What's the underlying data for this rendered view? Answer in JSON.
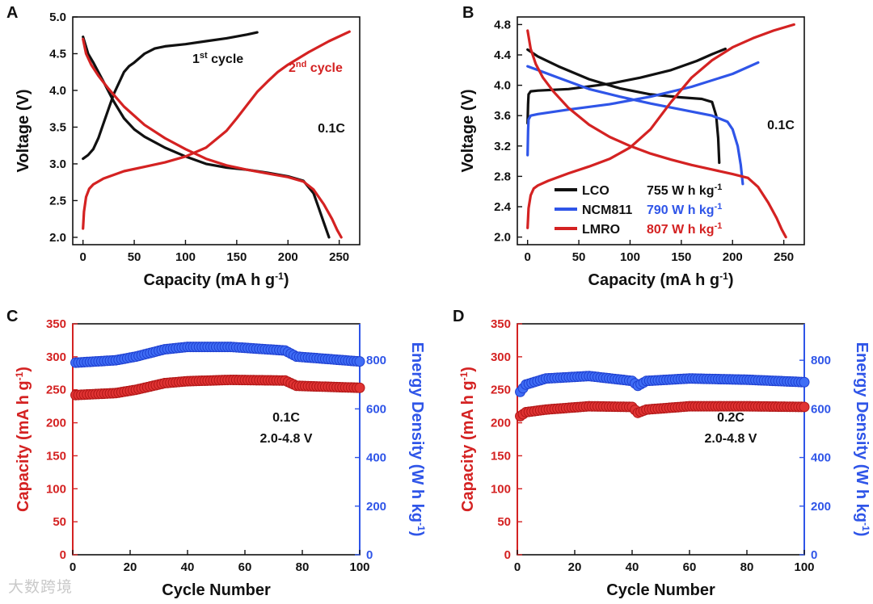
{
  "watermark": "大数跨境",
  "chart_data": [
    {
      "panel": "A",
      "type": "line",
      "xlabel": "Capacity (mA h g⁻¹)",
      "ylabel": "Voltage (V)",
      "xlim": [
        -10,
        270
      ],
      "ylim": [
        1.9,
        5.0
      ],
      "xticks": [
        0,
        50,
        100,
        150,
        200,
        250
      ],
      "yticks": [
        2.0,
        2.5,
        3.0,
        3.5,
        4.0,
        4.5,
        5.0
      ],
      "annotations": [
        {
          "text": "1st cycle",
          "color": "#111111"
        },
        {
          "text": "2nd cycle",
          "color": "#d42222"
        },
        {
          "text": "0.1C",
          "color": "#111111"
        }
      ],
      "series": [
        {
          "name": "1st cycle charge",
          "color": "#111111",
          "x": [
            0,
            5,
            10,
            15,
            20,
            30,
            40,
            45,
            50,
            60,
            70,
            80,
            100,
            120,
            140,
            160,
            170
          ],
          "y": [
            3.07,
            3.12,
            3.2,
            3.35,
            3.55,
            3.95,
            4.25,
            4.33,
            4.38,
            4.5,
            4.57,
            4.6,
            4.63,
            4.67,
            4.71,
            4.76,
            4.79
          ]
        },
        {
          "name": "1st cycle discharge",
          "color": "#111111",
          "x": [
            0,
            5,
            10,
            20,
            30,
            40,
            50,
            60,
            80,
            100,
            120,
            140,
            160,
            180,
            200,
            215,
            225,
            230,
            235,
            240
          ],
          "y": [
            4.73,
            4.5,
            4.38,
            4.12,
            3.85,
            3.62,
            3.47,
            3.37,
            3.22,
            3.1,
            3.0,
            2.95,
            2.92,
            2.88,
            2.83,
            2.77,
            2.6,
            2.4,
            2.2,
            2.0
          ]
        },
        {
          "name": "2nd cycle charge",
          "color": "#d42222",
          "x": [
            0,
            1,
            3,
            6,
            10,
            20,
            40,
            60,
            80,
            100,
            120,
            140,
            150,
            160,
            170,
            180,
            190,
            200,
            220,
            240,
            260
          ],
          "y": [
            2.12,
            2.35,
            2.55,
            2.66,
            2.72,
            2.8,
            2.9,
            2.96,
            3.02,
            3.1,
            3.22,
            3.45,
            3.62,
            3.8,
            3.98,
            4.12,
            4.25,
            4.35,
            4.52,
            4.67,
            4.8
          ]
        },
        {
          "name": "2nd cycle discharge",
          "color": "#d42222",
          "x": [
            0,
            3,
            8,
            15,
            25,
            40,
            60,
            80,
            100,
            120,
            140,
            160,
            180,
            200,
            215,
            225,
            235,
            243,
            248,
            252
          ],
          "y": [
            4.7,
            4.5,
            4.35,
            4.2,
            4.02,
            3.78,
            3.53,
            3.35,
            3.2,
            3.07,
            2.98,
            2.92,
            2.87,
            2.82,
            2.76,
            2.65,
            2.45,
            2.25,
            2.1,
            2.0
          ]
        }
      ]
    },
    {
      "panel": "B",
      "type": "line",
      "xlabel": "Capacity (mA h g⁻¹)",
      "ylabel": "Voltage (V)",
      "xlim": [
        -10,
        270
      ],
      "ylim": [
        1.9,
        4.9
      ],
      "xticks": [
        0,
        50,
        100,
        150,
        200,
        250
      ],
      "yticks": [
        2.0,
        2.4,
        2.8,
        3.2,
        3.6,
        4.0,
        4.4,
        4.8
      ],
      "annotations": [
        {
          "text": "0.1C",
          "color": "#111111"
        }
      ],
      "legend": [
        {
          "label": "LCO",
          "energy": "755 W h kg⁻¹",
          "color": "#111111"
        },
        {
          "label": "NCM811",
          "energy": "790 W h kg⁻¹",
          "color": "#2f55e8"
        },
        {
          "label": "LMRO",
          "energy": "807 W h kg⁻¹",
          "color": "#d42222"
        }
      ],
      "series": [
        {
          "name": "LCO charge",
          "color": "#111111",
          "x": [
            0,
            0.5,
            1,
            3,
            10,
            40,
            80,
            110,
            140,
            165,
            180,
            193
          ],
          "y": [
            3.5,
            3.75,
            3.88,
            3.92,
            3.93,
            3.95,
            4.02,
            4.1,
            4.2,
            4.32,
            4.41,
            4.48
          ]
        },
        {
          "name": "LCO discharge",
          "color": "#111111",
          "x": [
            0,
            10,
            30,
            60,
            90,
            120,
            150,
            170,
            180,
            184,
            186,
            187
          ],
          "y": [
            4.47,
            4.38,
            4.25,
            4.08,
            3.96,
            3.88,
            3.84,
            3.82,
            3.78,
            3.6,
            3.3,
            2.98
          ]
        },
        {
          "name": "NCM811 charge",
          "color": "#2f55e8",
          "x": [
            0,
            0.5,
            1,
            3,
            10,
            40,
            80,
            120,
            160,
            200,
            225
          ],
          "y": [
            3.08,
            3.4,
            3.55,
            3.6,
            3.62,
            3.68,
            3.75,
            3.85,
            3.98,
            4.15,
            4.3
          ]
        },
        {
          "name": "NCM811 discharge",
          "color": "#2f55e8",
          "x": [
            0,
            10,
            30,
            60,
            90,
            120,
            150,
            180,
            195,
            200,
            205,
            208,
            210
          ],
          "y": [
            4.25,
            4.2,
            4.1,
            3.95,
            3.85,
            3.76,
            3.68,
            3.6,
            3.52,
            3.42,
            3.2,
            2.95,
            2.7
          ]
        },
        {
          "name": "LMRO charge",
          "color": "#d42222",
          "x": [
            0,
            1,
            3,
            6,
            10,
            20,
            40,
            60,
            80,
            100,
            120,
            140,
            160,
            180,
            200,
            220,
            240,
            260
          ],
          "y": [
            2.12,
            2.38,
            2.55,
            2.64,
            2.68,
            2.74,
            2.84,
            2.93,
            3.03,
            3.18,
            3.42,
            3.78,
            4.1,
            4.33,
            4.5,
            4.62,
            4.72,
            4.8
          ]
        },
        {
          "name": "LMRO discharge",
          "color": "#d42222",
          "x": [
            0,
            3,
            8,
            15,
            25,
            40,
            60,
            80,
            100,
            120,
            140,
            160,
            180,
            200,
            215,
            225,
            235,
            243,
            248,
            252
          ],
          "y": [
            4.72,
            4.48,
            4.28,
            4.1,
            3.92,
            3.7,
            3.48,
            3.32,
            3.2,
            3.1,
            3.02,
            2.95,
            2.89,
            2.83,
            2.78,
            2.66,
            2.45,
            2.25,
            2.1,
            2.0
          ]
        }
      ]
    },
    {
      "panel": "C",
      "type": "scatter",
      "xlabel": "Cycle Number",
      "ylabel": "Capacity (mA h g⁻¹)",
      "y2label": "Energy Density (W h kg⁻¹)",
      "xlim": [
        0,
        100
      ],
      "ylim": [
        0,
        350
      ],
      "y2lim": [
        0,
        950
      ],
      "xticks": [
        0,
        20,
        40,
        60,
        80,
        100
      ],
      "yticks": [
        0,
        50,
        100,
        150,
        200,
        250,
        300,
        350
      ],
      "y2ticks": [
        0,
        200,
        400,
        600,
        800
      ],
      "annotations": [
        {
          "text": "0.1C"
        },
        {
          "text": "2.0-4.8 V"
        }
      ],
      "capacity_color": "#d42222",
      "energy_color": "#2f55e8",
      "capacity_profile": [
        [
          1,
          242
        ],
        [
          15,
          245
        ],
        [
          22,
          250
        ],
        [
          32,
          260
        ],
        [
          40,
          263
        ],
        [
          55,
          265
        ],
        [
          74,
          264
        ],
        [
          78,
          256
        ],
        [
          100,
          253
        ]
      ],
      "energy_profile": [
        [
          1,
          790
        ],
        [
          15,
          800
        ],
        [
          22,
          815
        ],
        [
          32,
          845
        ],
        [
          40,
          855
        ],
        [
          55,
          855
        ],
        [
          74,
          840
        ],
        [
          78,
          815
        ],
        [
          100,
          795
        ]
      ]
    },
    {
      "panel": "D",
      "type": "scatter",
      "xlabel": "Cycle Number",
      "ylabel": "Capacity (mA h g⁻¹)",
      "y2label": "Energy Density (W h kg⁻¹)",
      "xlim": [
        0,
        100
      ],
      "ylim": [
        0,
        350
      ],
      "y2lim": [
        0,
        950
      ],
      "xticks": [
        0,
        20,
        40,
        60,
        80,
        100
      ],
      "yticks": [
        0,
        50,
        100,
        150,
        200,
        250,
        300,
        350
      ],
      "y2ticks": [
        0,
        200,
        400,
        600,
        800
      ],
      "annotations": [
        {
          "text": "0.2C"
        },
        {
          "text": "2.0-4.8 V"
        }
      ],
      "capacity_color": "#d42222",
      "energy_color": "#2f55e8",
      "capacity_profile": [
        [
          1,
          210
        ],
        [
          3,
          216
        ],
        [
          10,
          220
        ],
        [
          25,
          225
        ],
        [
          40,
          224
        ],
        [
          42,
          215
        ],
        [
          45,
          220
        ],
        [
          60,
          225
        ],
        [
          80,
          225
        ],
        [
          100,
          224
        ]
      ],
      "energy_profile": [
        [
          1,
          670
        ],
        [
          3,
          700
        ],
        [
          10,
          725
        ],
        [
          25,
          735
        ],
        [
          40,
          715
        ],
        [
          42,
          695
        ],
        [
          45,
          715
        ],
        [
          60,
          725
        ],
        [
          80,
          720
        ],
        [
          100,
          710
        ]
      ]
    }
  ]
}
